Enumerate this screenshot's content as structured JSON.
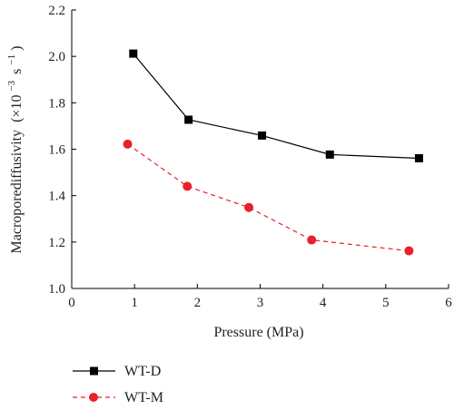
{
  "chart_data": {
    "type": "line",
    "xlabel": "Pressure (MPa)",
    "ylabel": "Macroporediffusivity",
    "ylabel_unit": "(×10",
    "ylabel_exp": "−3",
    "ylabel_unit_s": "s",
    "ylabel_unit_s_exp": "−1",
    "ylabel_close": ")",
    "xlim": [
      0,
      6
    ],
    "ylim": [
      1.0,
      2.2
    ],
    "xticks": [
      "0",
      "1",
      "2",
      "3",
      "4",
      "5",
      "6"
    ],
    "yticks": [
      "1.0",
      "1.2",
      "1.4",
      "1.6",
      "1.8",
      "2.0",
      "2.2"
    ],
    "grid": false,
    "legend_position": "bottom-left",
    "series": [
      {
        "name": "WT-D",
        "color": "#000000",
        "marker": "square",
        "line": "solid",
        "x": [
          0.98,
          1.86,
          3.03,
          4.11,
          5.53
        ],
        "y": [
          2.012,
          1.727,
          1.659,
          1.577,
          1.561
        ]
      },
      {
        "name": "WT-M",
        "color": "#e8202a",
        "marker": "circle",
        "line": "dashed",
        "x": [
          0.89,
          1.84,
          2.82,
          3.82,
          5.37
        ],
        "y": [
          1.622,
          1.44,
          1.349,
          1.209,
          1.162
        ]
      }
    ]
  }
}
